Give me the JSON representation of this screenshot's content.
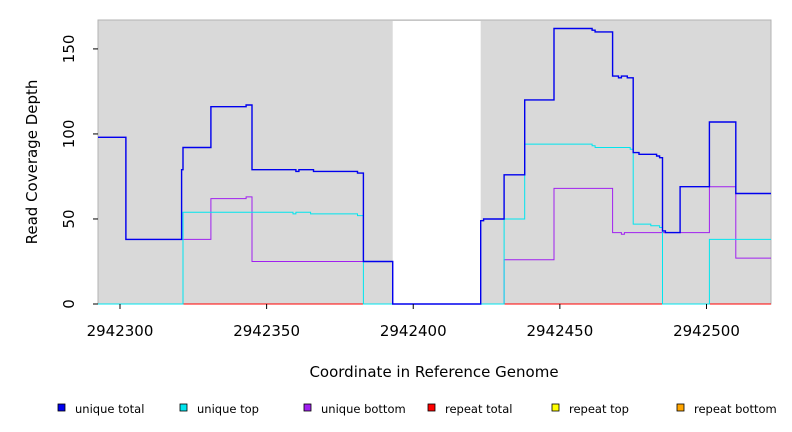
{
  "chart_data": {
    "type": "line",
    "title": "",
    "xlabel": "Coordinate in Reference Genome",
    "ylabel": "Read Coverage Depth",
    "xlim": [
      2942292.5,
      2942522
    ],
    "ylim": [
      0,
      167
    ],
    "x_ticks": [
      2942300,
      2942350,
      2942400,
      2942450,
      2942500
    ],
    "y_ticks": [
      0,
      50,
      100,
      150
    ],
    "panel_color": "#d9d9d9",
    "gap": [
      2942393,
      2942423
    ],
    "legend_position": "bottom",
    "series": [
      {
        "name": "unique total",
        "color": "#0000ee",
        "points": [
          [
            2942292.5,
            98
          ],
          [
            2942302,
            98
          ],
          [
            2942302,
            38
          ],
          [
            2942321,
            38
          ],
          [
            2942321,
            79
          ],
          [
            2942321.5,
            79
          ],
          [
            2942321.5,
            92
          ],
          [
            2942331,
            92
          ],
          [
            2942331,
            116
          ],
          [
            2942343,
            116
          ],
          [
            2942343,
            117
          ],
          [
            2942345,
            117
          ],
          [
            2942345,
            79
          ],
          [
            2942360,
            79
          ],
          [
            2942360,
            78
          ],
          [
            2942361,
            78
          ],
          [
            2942361,
            79
          ],
          [
            2942366,
            79
          ],
          [
            2942366,
            78
          ],
          [
            2942381,
            78
          ],
          [
            2942381,
            77
          ],
          [
            2942383,
            77
          ],
          [
            2942383,
            25
          ],
          [
            2942393,
            25
          ],
          [
            2942393,
            0
          ],
          [
            2942423,
            0
          ],
          [
            2942423,
            49
          ],
          [
            2942424,
            49
          ],
          [
            2942424,
            50
          ],
          [
            2942431,
            50
          ],
          [
            2942431,
            76
          ],
          [
            2942438,
            76
          ],
          [
            2942438,
            120
          ],
          [
            2942448,
            120
          ],
          [
            2942448,
            162
          ],
          [
            2942461,
            162
          ],
          [
            2942461,
            161
          ],
          [
            2942462,
            161
          ],
          [
            2942462,
            160
          ],
          [
            2942468,
            160
          ],
          [
            2942468,
            134
          ],
          [
            2942470,
            134
          ],
          [
            2942470,
            133
          ],
          [
            2942471,
            133
          ],
          [
            2942471,
            134
          ],
          [
            2942473,
            134
          ],
          [
            2942473,
            133
          ],
          [
            2942475,
            133
          ],
          [
            2942475,
            89
          ],
          [
            2942477,
            89
          ],
          [
            2942477,
            88
          ],
          [
            2942483,
            88
          ],
          [
            2942483,
            87
          ],
          [
            2942484,
            87
          ],
          [
            2942484,
            86
          ],
          [
            2942485,
            86
          ],
          [
            2942485,
            43
          ],
          [
            2942486,
            43
          ],
          [
            2942486,
            42
          ],
          [
            2942491,
            42
          ],
          [
            2942491,
            69
          ],
          [
            2942501,
            69
          ],
          [
            2942501,
            107
          ],
          [
            2942510,
            107
          ],
          [
            2942510,
            65
          ],
          [
            2942522,
            65
          ]
        ]
      },
      {
        "name": "unique top",
        "color": "#00e5ee",
        "points": [
          [
            2942292.5,
            0
          ],
          [
            2942321.5,
            0
          ],
          [
            2942321.5,
            54
          ],
          [
            2942359,
            54
          ],
          [
            2942359,
            53
          ],
          [
            2942360,
            53
          ],
          [
            2942360,
            54
          ],
          [
            2942365,
            54
          ],
          [
            2942365,
            53
          ],
          [
            2942381,
            53
          ],
          [
            2942381,
            52
          ],
          [
            2942383,
            52
          ],
          [
            2942383,
            0
          ],
          [
            2942431,
            0
          ],
          [
            2942431,
            50
          ],
          [
            2942438,
            50
          ],
          [
            2942438,
            94
          ],
          [
            2942461,
            94
          ],
          [
            2942461,
            93
          ],
          [
            2942462,
            93
          ],
          [
            2942462,
            92
          ],
          [
            2942474,
            92
          ],
          [
            2942474,
            91
          ],
          [
            2942475,
            91
          ],
          [
            2942475,
            47
          ],
          [
            2942481,
            47
          ],
          [
            2942481,
            46
          ],
          [
            2942484,
            46
          ],
          [
            2942484,
            45
          ],
          [
            2942485,
            45
          ],
          [
            2942485,
            0
          ],
          [
            2942501,
            0
          ],
          [
            2942501,
            38
          ],
          [
            2942522,
            38
          ]
        ]
      },
      {
        "name": "unique bottom",
        "color": "#a020f0",
        "points": [
          [
            2942292.5,
            98
          ],
          [
            2942302,
            98
          ],
          [
            2942302,
            38
          ],
          [
            2942331,
            38
          ],
          [
            2942331,
            62
          ],
          [
            2942343,
            62
          ],
          [
            2942343,
            63
          ],
          [
            2942345,
            63
          ],
          [
            2942345,
            25
          ],
          [
            2942393,
            25
          ],
          [
            2942393,
            0
          ],
          [
            2942431,
            0
          ],
          [
            2942431,
            26
          ],
          [
            2942448,
            26
          ],
          [
            2942448,
            68
          ],
          [
            2942468,
            68
          ],
          [
            2942468,
            42
          ],
          [
            2942471,
            42
          ],
          [
            2942471,
            41
          ],
          [
            2942472,
            41
          ],
          [
            2942472,
            42
          ],
          [
            2942486,
            42
          ],
          [
            2942486,
            42
          ],
          [
            2942501,
            42
          ],
          [
            2942501,
            69
          ],
          [
            2942510,
            69
          ],
          [
            2942510,
            27
          ],
          [
            2942522,
            27
          ]
        ]
      },
      {
        "name": "repeat total",
        "color": "#ff0000",
        "points": [
          [
            2942292.5,
            0
          ],
          [
            2942393,
            0
          ],
          [
            2942423,
            0
          ],
          [
            2942522,
            0
          ]
        ]
      },
      {
        "name": "repeat top",
        "color": "#ffff00",
        "points": [
          [
            2942292.5,
            0
          ],
          [
            2942393,
            0
          ],
          [
            2942423,
            0
          ],
          [
            2942522,
            0
          ]
        ]
      },
      {
        "name": "repeat bottom",
        "color": "#ffa500",
        "points": [
          [
            2942292.5,
            0
          ],
          [
            2942393,
            0
          ],
          [
            2942423,
            0
          ],
          [
            2942522,
            0
          ]
        ]
      }
    ]
  }
}
